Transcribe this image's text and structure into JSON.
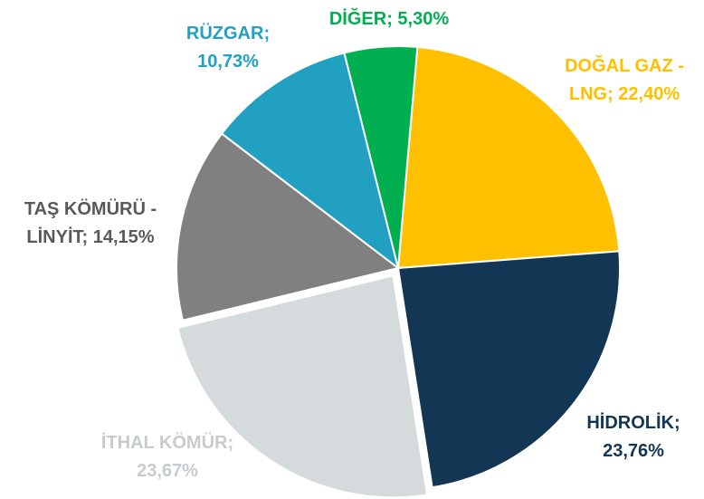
{
  "chart_data": {
    "type": "pie",
    "labels": [
      "DOĞAL GAZ - LNG; 22,40%",
      "HİDROLİK; 23,76%",
      "İTHAL KÖMÜR; 23,67%",
      "TAŞ KÖMÜRÜ - LİNYİT; 14,15%",
      "RÜZGAR; 10,73%",
      "DİĞER; 5,30%"
    ],
    "values": [
      22.4,
      23.76,
      23.67,
      14.15,
      10.73,
      5.3
    ],
    "colors": [
      "#FFC000",
      "#123654",
      "#D5DBDD",
      "#808080",
      "#21A0C2",
      "#00B050"
    ],
    "label_colors": [
      "#FFC000",
      "#123654",
      "#C6CBCE",
      "#595959",
      "#21A0C2",
      "#00B050"
    ],
    "exploded": [
      false,
      false,
      true,
      false,
      false,
      false
    ]
  }
}
